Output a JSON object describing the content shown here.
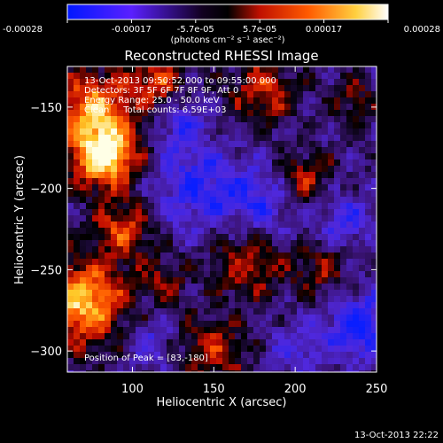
{
  "colorbar": {
    "colors": [
      "#0018ff",
      "#6a1cff",
      "#000000",
      "#ff2a00",
      "#ffb000",
      "#ffffff"
    ],
    "tick_labels": [
      "-0.00028",
      "-0.00017",
      "-5.7e-05",
      "5.7e-05",
      "0.00017",
      "0.00028"
    ],
    "unit_label": "(photons cm⁻² s⁻¹ asec⁻²)"
  },
  "chart_data": {
    "type": "heatmap",
    "title": "Reconstructed RHESSI Image",
    "xlabel": "Heliocentric X (arcsec)",
    "ylabel": "Heliocentric Y (arcsec)",
    "xlim": [
      60,
      250
    ],
    "ylim": [
      -313,
      -125
    ],
    "xticks": [
      100,
      150,
      200,
      250
    ],
    "yticks": [
      -150,
      -200,
      -250,
      -300
    ],
    "peak": {
      "x": 83,
      "y": -180
    },
    "header_lines": [
      "13-Oct-2013 09:50:52.000 to 09:55:00.000",
      "Detectors: 3F 5F 6F 7F 8F 9F, Att 0",
      "Energy Range: 25.0 - 50.0 keV",
      "Clean     Total counts: 6.59E+03"
    ],
    "peak_label": "Position of Peak = [83,-180]"
  },
  "timestamp": "13-Oct-2013 22:22"
}
